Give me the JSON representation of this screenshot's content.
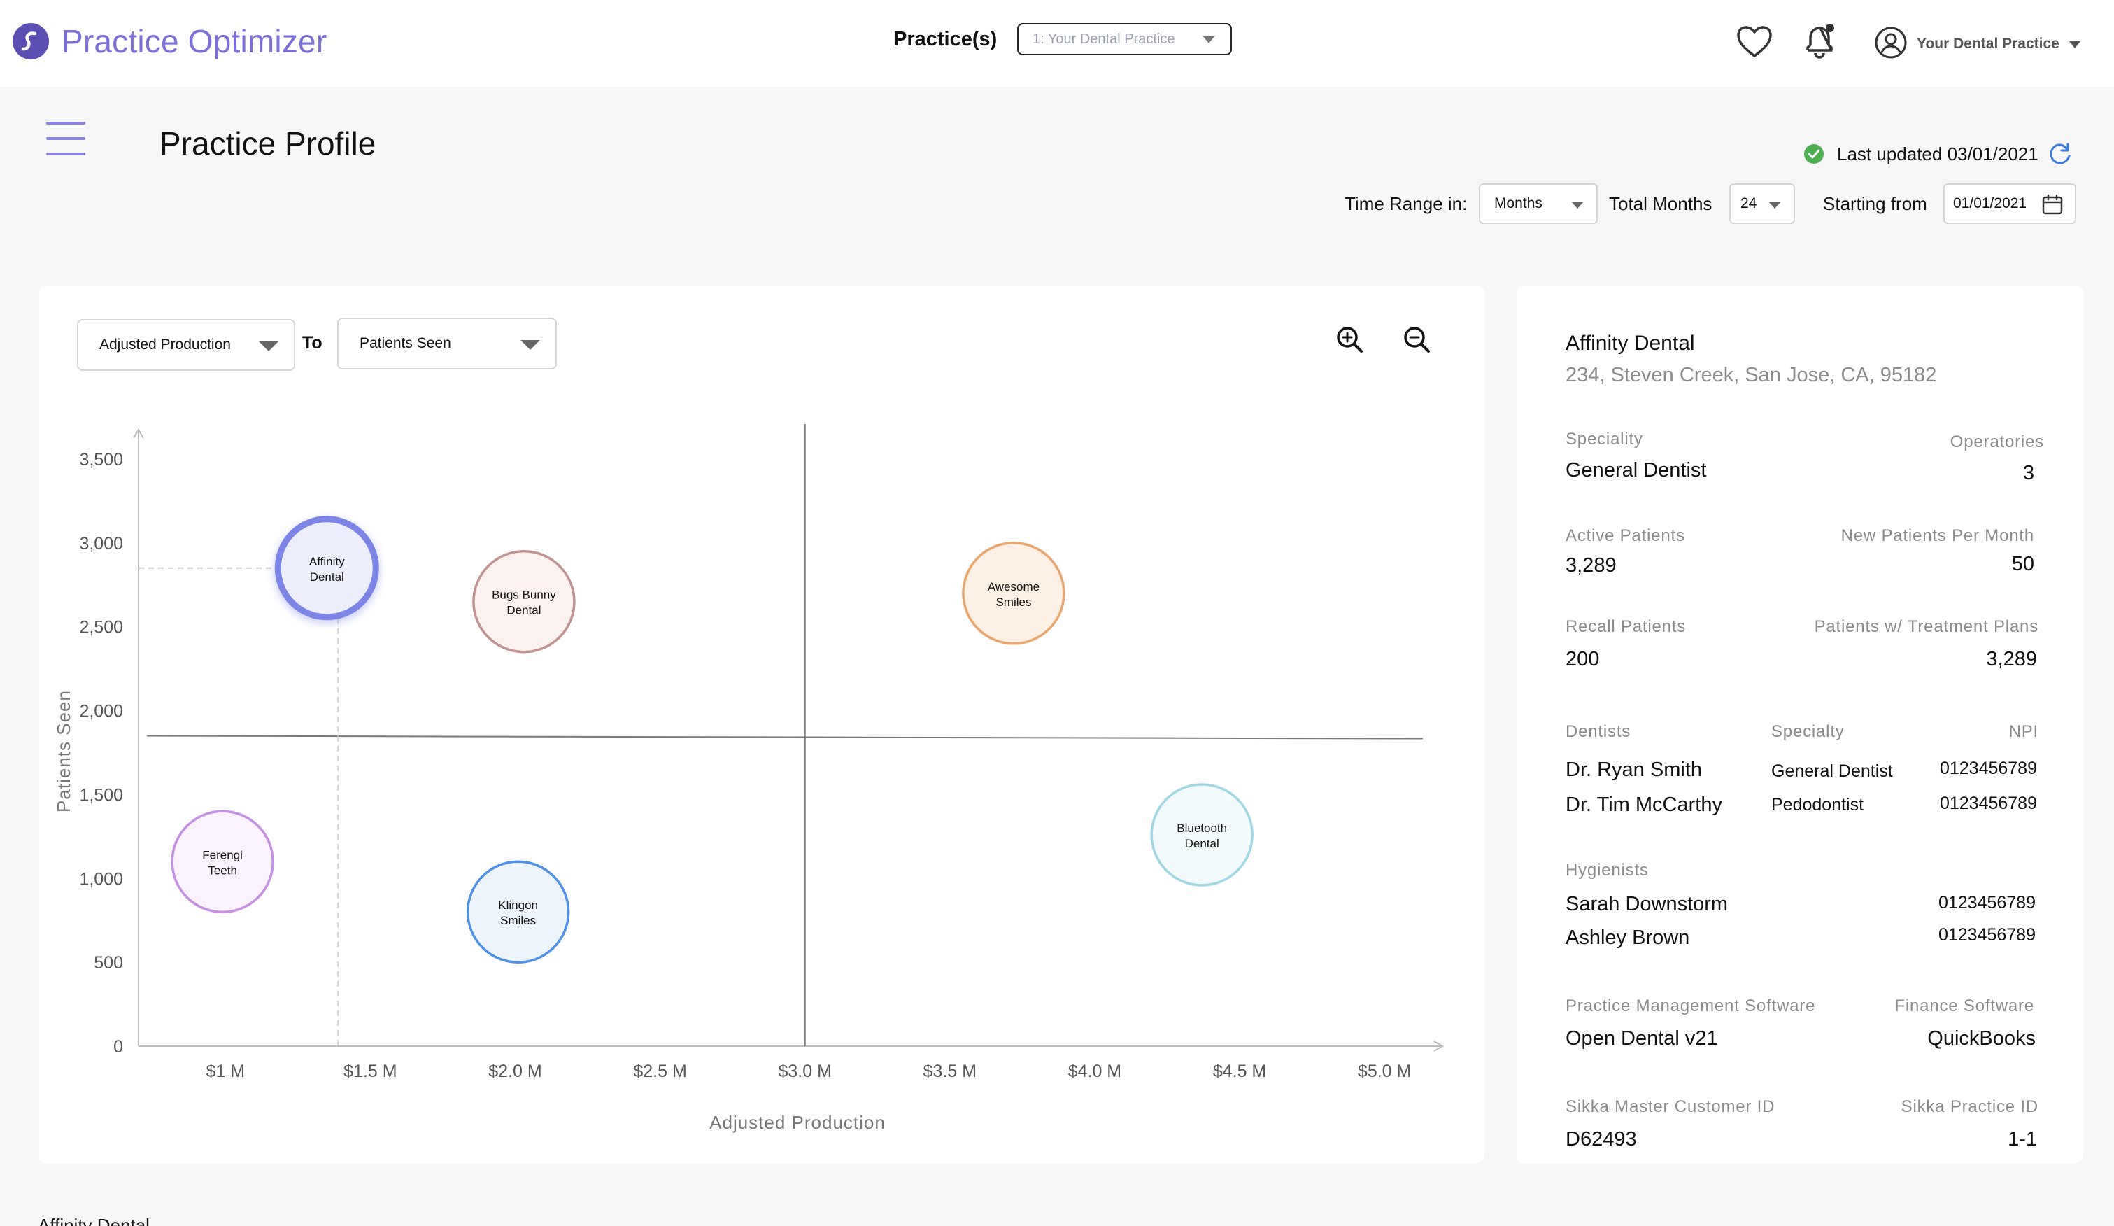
{
  "header": {
    "app_title": "Practice Optimizer",
    "practice_label": "Practice(s)",
    "practice_selected": "1: Your Dental Practice",
    "user_name": "Your Dental Practice"
  },
  "page": {
    "title": "Practice Profile",
    "last_updated": "Last updated 03/01/2021",
    "time_range_label": "Time Range in:",
    "time_range_value": "Months",
    "total_months_label": "Total Months",
    "total_months_value": "24",
    "starting_from_label": "Starting from",
    "starting_from_value": "01/01/2021"
  },
  "chart_controls": {
    "x_metric": "Adjusted Production",
    "to_label": "To",
    "y_metric": "Patients Seen"
  },
  "chart_data": {
    "type": "scatter",
    "xlabel": "Adjusted Production",
    "ylabel": "Patients Seen",
    "x_ticks": [
      "$1 M",
      "$1.5 M",
      "$2.0 M",
      "$2.5 M",
      "$3.0 M",
      "$3.5 M",
      "$4.0 M",
      "$4.5 M",
      "$5.0 M"
    ],
    "y_ticks": [
      "0",
      "500",
      "1,000",
      "1,500",
      "2,000",
      "2,500",
      "3,000",
      "3,500"
    ],
    "xlim": [
      0.7,
      5.2
    ],
    "ylim": [
      0,
      3600
    ],
    "quadrant_lines": {
      "x": 3.0,
      "y": 1850
    },
    "highlighted": "Affinity Dental",
    "points": [
      {
        "name_lines": [
          "Affinity",
          "Dental"
        ],
        "x": 1.35,
        "y": 2850,
        "color": "#7b84e6",
        "fill": "#eceefb",
        "highlight": true
      },
      {
        "name_lines": [
          "Bugs Bunny",
          "Dental"
        ],
        "x": 2.03,
        "y": 2650,
        "color": "#c09290",
        "fill": "#fbf1ef",
        "highlight": false
      },
      {
        "name_lines": [
          "Awesome",
          "Smiles"
        ],
        "x": 3.72,
        "y": 2700,
        "color": "#eaa66c",
        "fill": "#fdf0e4",
        "highlight": false
      },
      {
        "name_lines": [
          "Ferengi",
          "Teeth"
        ],
        "x": 0.99,
        "y": 1100,
        "color": "#c58fe3",
        "fill": "#faf3fd",
        "highlight": false
      },
      {
        "name_lines": [
          "Klingon",
          "Smiles"
        ],
        "x": 2.01,
        "y": 800,
        "color": "#4d92e6",
        "fill": "#eef4fc",
        "highlight": false
      },
      {
        "name_lines": [
          "Bluetooth",
          "Dental"
        ],
        "x": 4.37,
        "y": 1260,
        "color": "#9fd7e3",
        "fill": "#f3fafc",
        "highlight": false
      }
    ]
  },
  "profile": {
    "name": "Affinity Dental",
    "address": "234, Steven Creek, San Jose, CA, 95182",
    "speciality_label": "Speciality",
    "speciality": "General Dentist",
    "operatories_label": "Operatories",
    "operatories": "3",
    "active_patients_label": "Active Patients",
    "active_patients": "3,289",
    "new_patients_label": "New Patients Per Month",
    "new_patients": "50",
    "recall_label": "Recall Patients",
    "recall": "200",
    "treatment_label": "Patients w/ Treatment Plans",
    "treatment": "3,289",
    "dentists_label": "Dentists",
    "specialty_label": "Specialty",
    "npi_label": "NPI",
    "dentists": [
      {
        "name": "Dr. Ryan Smith",
        "specialty": "General Dentist",
        "npi": "0123456789"
      },
      {
        "name": "Dr. Tim McCarthy",
        "specialty": "Pedodontist",
        "npi": "0123456789"
      }
    ],
    "hygienists_label": "Hygienists",
    "hygienists": [
      {
        "name": "Sarah Downstorm",
        "npi": "0123456789"
      },
      {
        "name": "Ashley Brown",
        "npi": "0123456789"
      }
    ],
    "pms_label": "Practice Management Software",
    "pms": "Open Dental v21",
    "finance_label": "Finance Software",
    "finance": "QuickBooks",
    "master_id_label": "Sikka Master Customer ID",
    "master_id": "D62493",
    "practice_id_label": "Sikka Practice ID",
    "practice_id": "1-1"
  },
  "footer_snippet": "Affinity Dental",
  "colors": {
    "accent": "#7a70d8",
    "check": "#4caf50",
    "refresh": "#3d7be0"
  }
}
